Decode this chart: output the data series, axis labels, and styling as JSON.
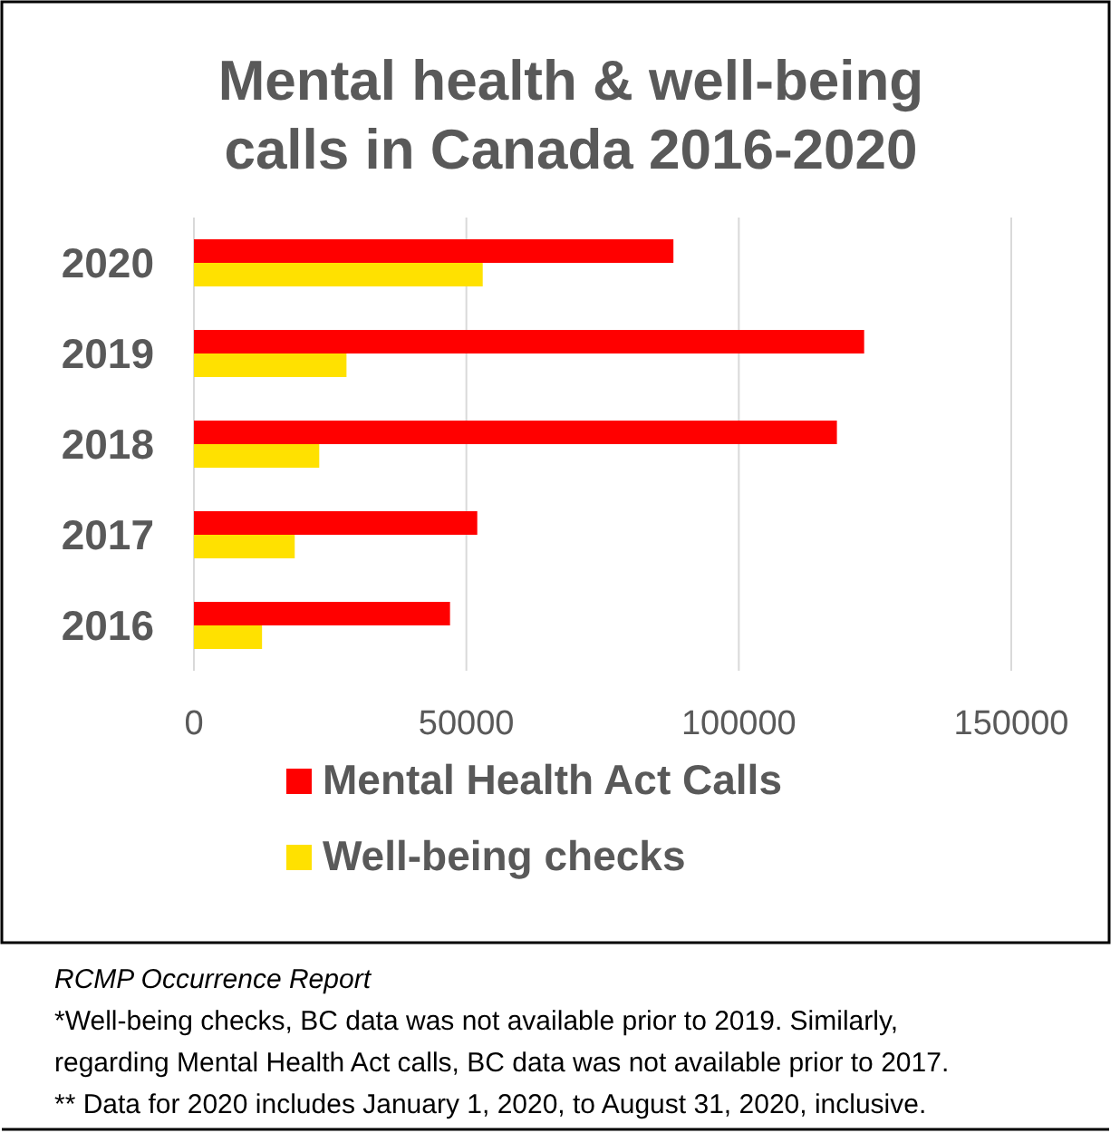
{
  "chart_data": {
    "type": "bar",
    "orientation": "horizontal",
    "title": "Mental health & well-being calls in Canada 2016-2020",
    "categories": [
      "2020",
      "2019",
      "2018",
      "2017",
      "2016"
    ],
    "series": [
      {
        "name": "Mental Health Act Calls",
        "color": "#ff0000",
        "values": [
          88000,
          123000,
          118000,
          52000,
          47000
        ]
      },
      {
        "name": "Well-being checks",
        "color": "#ffe100",
        "values": [
          53000,
          28000,
          23000,
          18500,
          12500
        ]
      }
    ],
    "xlim": [
      0,
      150000
    ],
    "xticks": [
      0,
      50000,
      100000,
      150000
    ],
    "grid": "x",
    "legend": "bottom",
    "annotations": [
      "RCMP Occurrence Report",
      "*Well-being checks, BC data was not available prior to 2019. Similarly, regarding Mental Health Act calls, BC data was not available prior to 2017.",
      "** Data for 2020 includes January 1, 2020, to August 31, 2020, inclusive."
    ]
  }
}
